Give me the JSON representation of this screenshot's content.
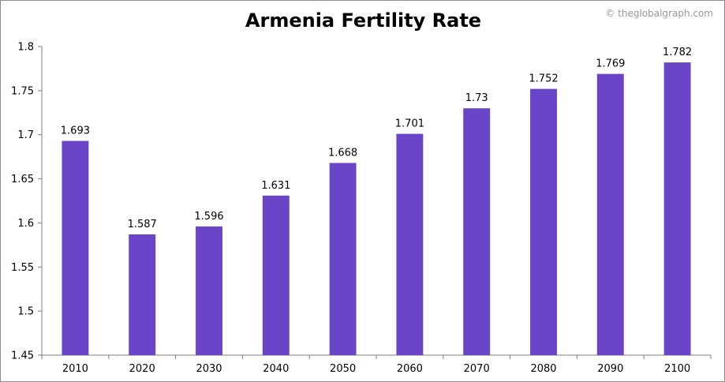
{
  "title": "Armenia Fertility Rate",
  "credit": "© theglobalgraph.com",
  "colors": {
    "bar": "#6a45c8",
    "axis": "#7f7f7f",
    "background": "#ffffff",
    "frame": "#8c8c8c"
  },
  "chart_data": {
    "type": "bar",
    "title": "Armenia Fertility Rate",
    "xlabel": "",
    "ylabel": "",
    "categories": [
      "2010",
      "2020",
      "2030",
      "2040",
      "2050",
      "2060",
      "2070",
      "2080",
      "2090",
      "2100"
    ],
    "values": [
      1.693,
      1.587,
      1.596,
      1.631,
      1.668,
      1.701,
      1.73,
      1.752,
      1.769,
      1.782
    ],
    "data_labels": [
      "1.693",
      "1.587",
      "1.596",
      "1.631",
      "1.668",
      "1.701",
      "1.73",
      "1.752",
      "1.769",
      "1.782"
    ],
    "ylim": [
      1.45,
      1.8
    ],
    "yticks": [
      "1.45",
      "1.5",
      "1.55",
      "1.6",
      "1.65",
      "1.7",
      "1.75",
      "1.8"
    ],
    "grid": false,
    "legend": "none"
  }
}
